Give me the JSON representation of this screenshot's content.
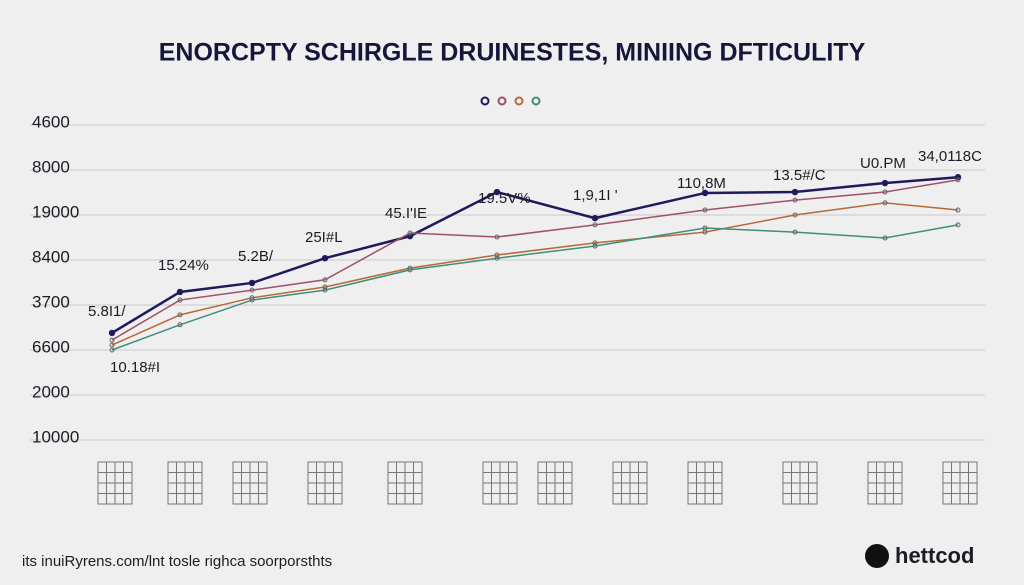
{
  "chart_data": {
    "type": "line",
    "title": "ENORCPTY SCHIRGLE DRUINESTES, MINIING DFTICULITY",
    "footer": "its inuiRyrens.com/lnt tosle righca soorporsthts",
    "logo": "hettcod",
    "categories": [
      null,
      null,
      null,
      null,
      null,
      null,
      null,
      null,
      null,
      null,
      null
    ],
    "ylim": [
      0,
      7
    ],
    "yticks": [
      {
        "value": 7,
        "label": "4600"
      },
      {
        "value": 6,
        "label": "8000"
      },
      {
        "value": 5,
        "label": "19000"
      },
      {
        "value": 4,
        "label": "8400"
      },
      {
        "value": 3,
        "label": "3700"
      },
      {
        "value": 2,
        "label": "6600"
      },
      {
        "value": 1,
        "label": "2000"
      },
      {
        "value": 0,
        "label": "10000"
      }
    ],
    "grid": true,
    "series": [
      {
        "color": "#1f1a5c",
        "values": [
          2.38,
          3.29,
          3.49,
          4.04,
          4.53,
          5.51,
          4.93,
          5.49,
          5.51,
          5.71,
          5.84
        ]
      },
      {
        "color": "#a0506a",
        "values": [
          2.22,
          3.11,
          3.33,
          3.56,
          4.6,
          4.51,
          4.78,
          5.11,
          5.33,
          5.51,
          5.78
        ]
      },
      {
        "color": "#b8693a",
        "values": [
          2.11,
          2.78,
          3.16,
          3.4,
          3.82,
          4.11,
          4.38,
          4.62,
          5.0,
          5.27,
          5.11
        ]
      },
      {
        "color": "#3f8f7a",
        "values": [
          2.0,
          2.56,
          3.11,
          3.33,
          3.78,
          4.04,
          4.31,
          4.71,
          4.62,
          4.49,
          4.78
        ]
      }
    ],
    "annotations": [
      "5.8I1/",
      "10.18#I",
      "15.24%",
      "5.2B/",
      "25I#L",
      "45.I'IE",
      "19.5V%",
      "1,9,1I '",
      "110,8M",
      "13.5#/C",
      "U0.PM",
      "34,0118C"
    ]
  }
}
